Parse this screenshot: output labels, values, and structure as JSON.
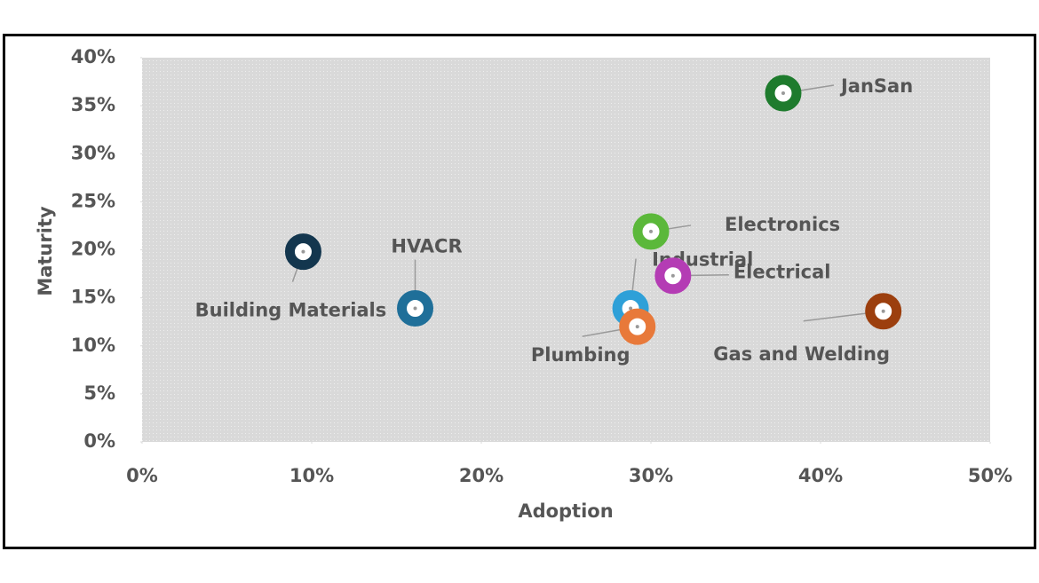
{
  "chart_data": {
    "type": "scatter",
    "xlabel": "Adoption",
    "ylabel": "Maturity",
    "xlim": [
      0,
      50
    ],
    "ylim": [
      0,
      40
    ],
    "xticks": [
      {
        "value": 0,
        "label": "0%"
      },
      {
        "value": 10,
        "label": "10%"
      },
      {
        "value": 20,
        "label": "20%"
      },
      {
        "value": 30,
        "label": "30%"
      },
      {
        "value": 40,
        "label": "40%"
      },
      {
        "value": 50,
        "label": "50%"
      }
    ],
    "yticks": [
      {
        "value": 0,
        "label": "0%"
      },
      {
        "value": 5,
        "label": "5%"
      },
      {
        "value": 10,
        "label": "10%"
      },
      {
        "value": 15,
        "label": "15%"
      },
      {
        "value": 20,
        "label": "20%"
      },
      {
        "value": 25,
        "label": "25%"
      },
      {
        "value": 30,
        "label": "30%"
      },
      {
        "value": 35,
        "label": "35%"
      },
      {
        "value": 40,
        "label": "40%"
      }
    ],
    "series": [
      {
        "name": "JanSan",
        "color": "#1e7b2d",
        "x": [
          37.8
        ],
        "values": [
          36.3
        ]
      },
      {
        "name": "Electronics",
        "color": "#5bb83a",
        "x": [
          30.0
        ],
        "values": [
          21.9
        ]
      },
      {
        "name": "Industrial",
        "color": "#2ea0d8",
        "x": [
          28.8
        ],
        "values": [
          13.9
        ]
      },
      {
        "name": "Electrical",
        "color": "#b43cb4",
        "x": [
          31.3
        ],
        "values": [
          17.3
        ]
      },
      {
        "name": "Plumbing",
        "color": "#e8793a",
        "x": [
          29.2
        ],
        "values": [
          12.0
        ]
      },
      {
        "name": "Gas and Welding",
        "color": "#9c3f0e",
        "x": [
          43.7
        ],
        "values": [
          13.6
        ]
      },
      {
        "name": "HVACR",
        "color": "#1f6f99",
        "x": [
          16.1
        ],
        "values": [
          13.9
        ]
      },
      {
        "name": "Building Materials",
        "color": "#13364e",
        "x": [
          9.5
        ],
        "values": [
          19.8
        ]
      }
    ]
  }
}
